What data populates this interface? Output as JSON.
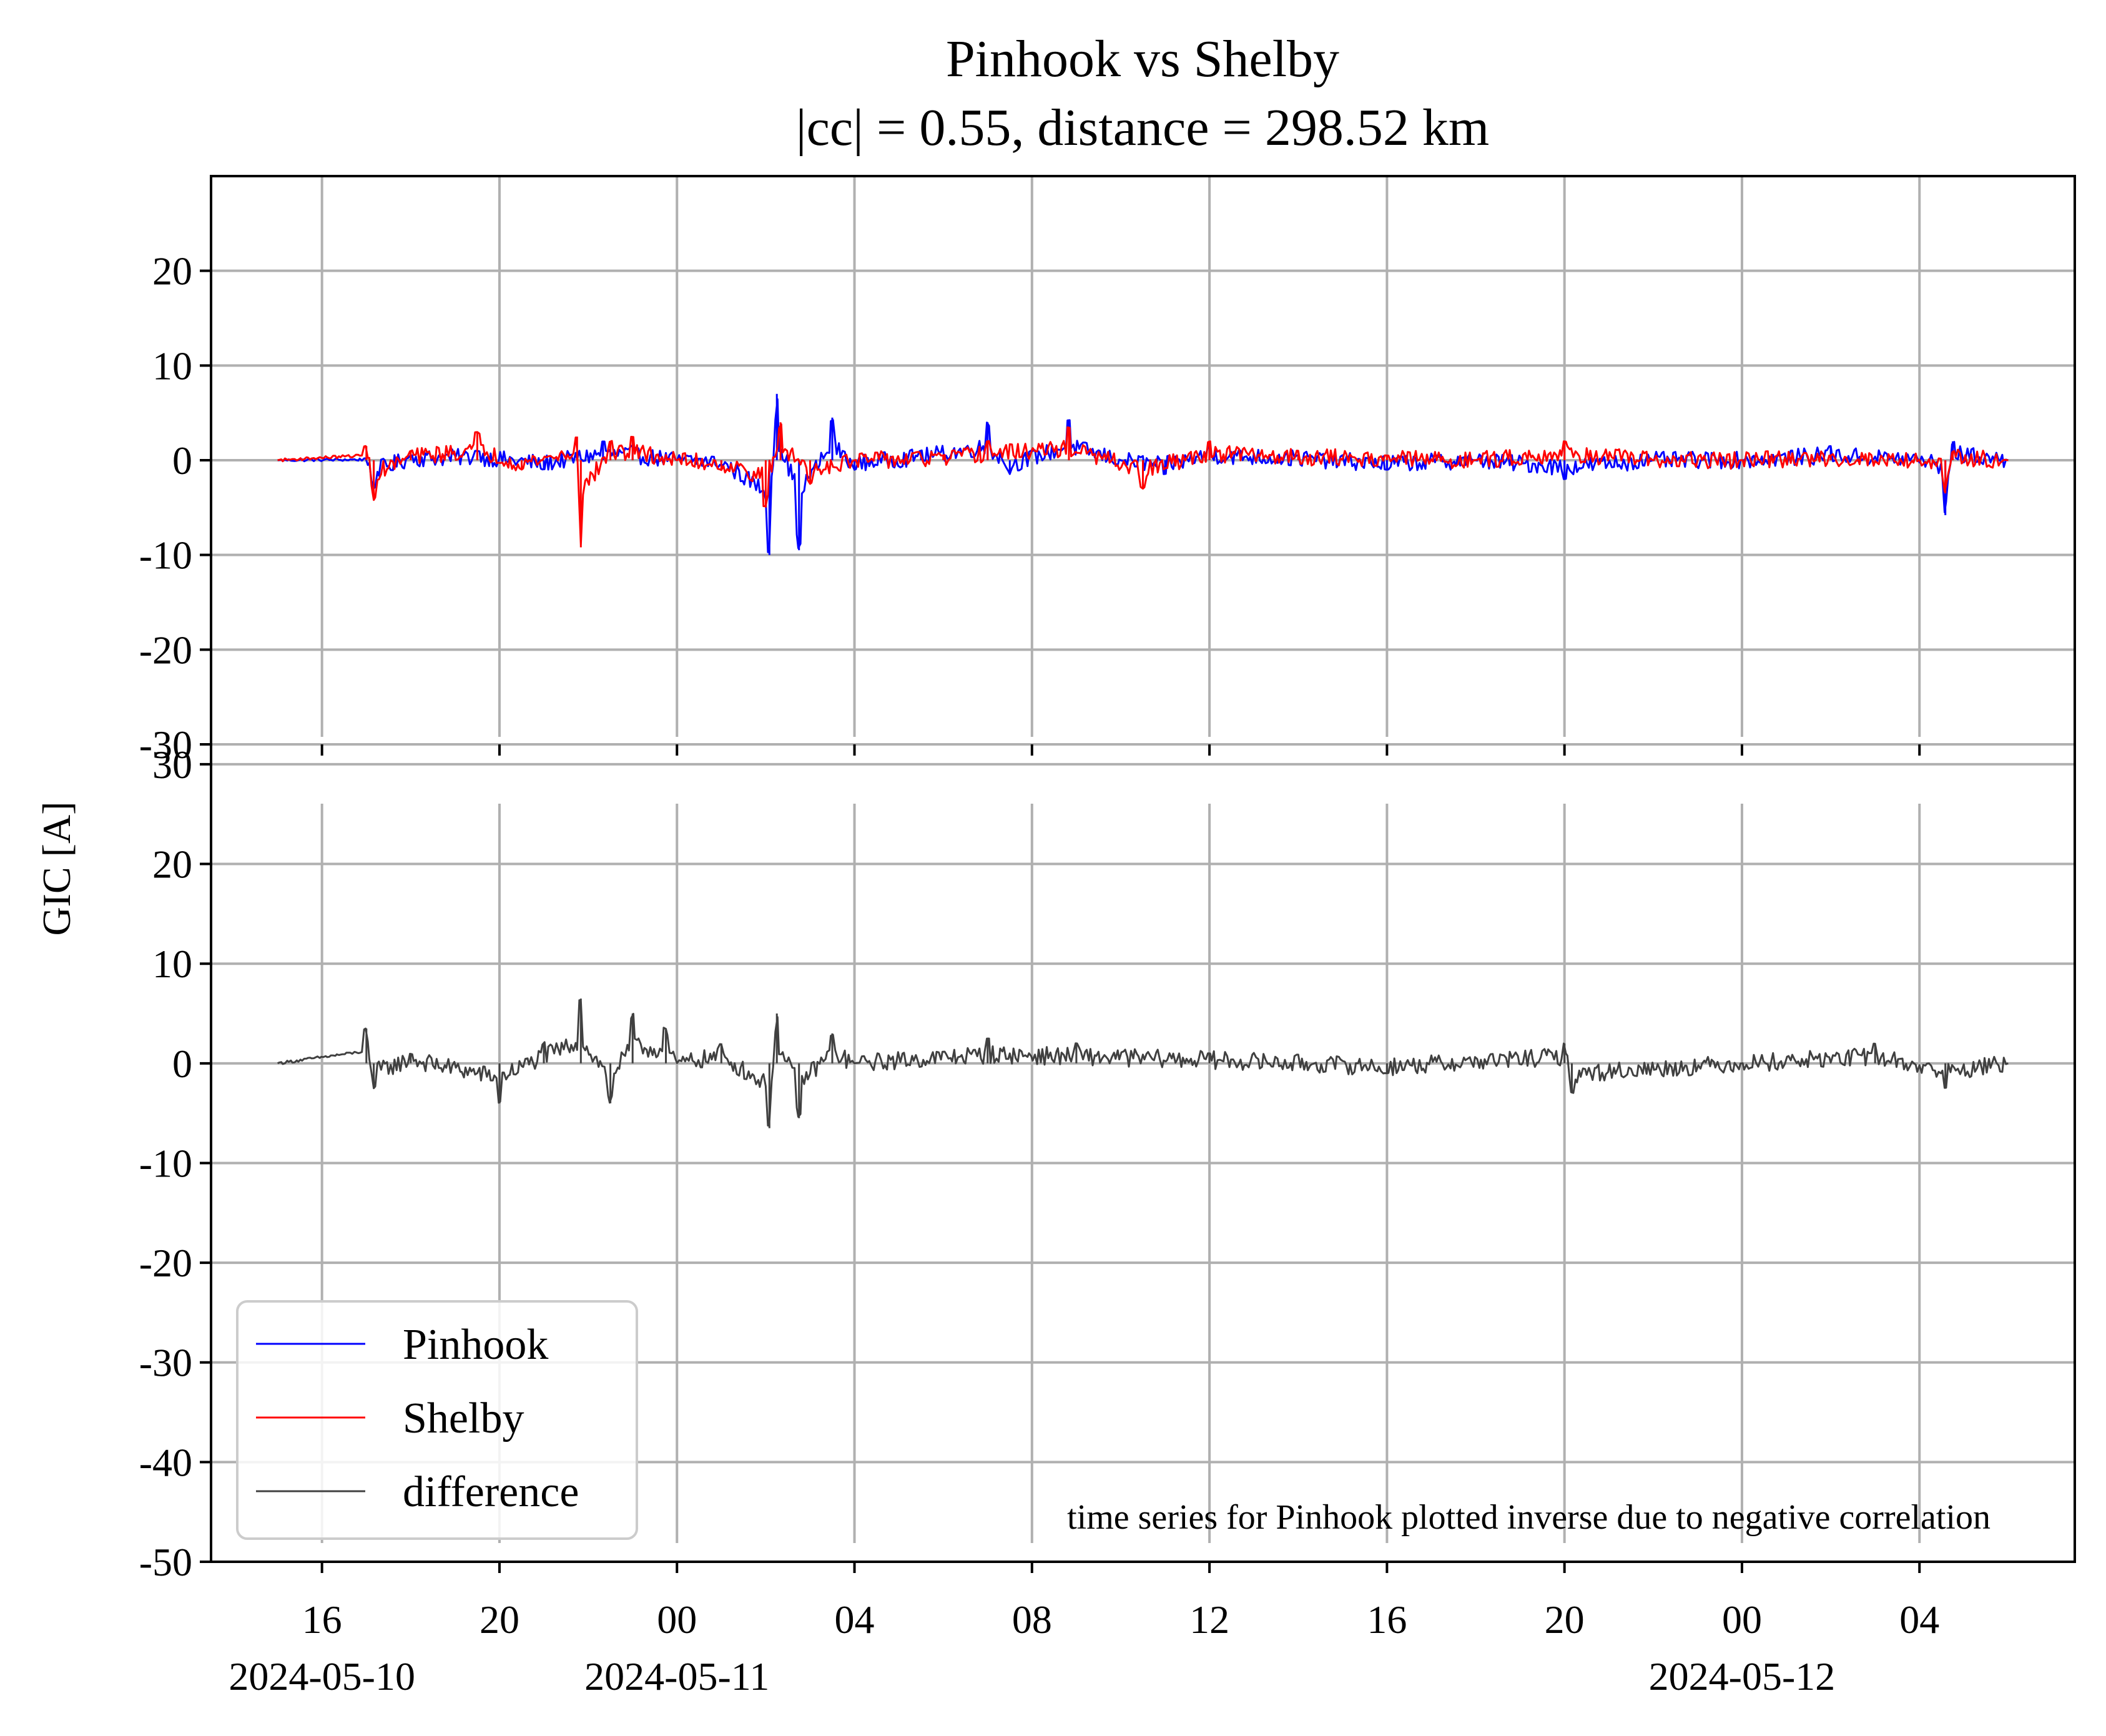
{
  "chart_data": {
    "type": "line",
    "title": "Pinhook vs Shelby",
    "subtitle": "|cc| = 0.55, distance = 298.52 km",
    "ylabel": "GIC [A]",
    "xlabel": "",
    "x_range": [
      "2024-05-10T13:30",
      "2024-05-12T07:30"
    ],
    "x_data_range": [
      "2024-05-10T15:00",
      "2024-05-12T06:00"
    ],
    "x_major_ticks": [
      {
        "time": "2024-05-10T16:00",
        "label": "16"
      },
      {
        "time": "2024-05-10T20:00",
        "label": "20"
      },
      {
        "time": "2024-05-11T00:00",
        "label": "00"
      },
      {
        "time": "2024-05-11T04:00",
        "label": "04"
      },
      {
        "time": "2024-05-11T08:00",
        "label": "08"
      },
      {
        "time": "2024-05-11T12:00",
        "label": "12"
      },
      {
        "time": "2024-05-11T16:00",
        "label": "16"
      },
      {
        "time": "2024-05-11T20:00",
        "label": "20"
      },
      {
        "time": "2024-05-12T00:00",
        "label": "00"
      },
      {
        "time": "2024-05-12T04:00",
        "label": "04"
      }
    ],
    "x_date_labels": [
      {
        "time": "2024-05-10T16:00",
        "label": "2024-05-10"
      },
      {
        "time": "2024-05-11T00:00",
        "label": "2024-05-11"
      },
      {
        "time": "2024-05-12T00:00",
        "label": "2024-05-12"
      }
    ],
    "grid": true,
    "legend_position": "lower-left",
    "panels": [
      {
        "name": "top",
        "ylim": [
          -30,
          30
        ],
        "yticks": [
          -30,
          -20,
          -10,
          0,
          10,
          20
        ],
        "series": [
          {
            "name": "Pinhook",
            "color": "#0000ff",
            "points": [
              [
                "2024-05-10T15:00",
                0.0
              ],
              [
                "2024-05-10T17:00",
                0.2
              ],
              [
                "2024-05-10T17:10",
                -3.0
              ],
              [
                "2024-05-10T18:00",
                0.5
              ],
              [
                "2024-05-10T19:30",
                1.0
              ],
              [
                "2024-05-10T21:00",
                -1.0
              ],
              [
                "2024-05-10T22:20",
                2.0
              ],
              [
                "2024-05-10T23:00",
                1.5
              ],
              [
                "2024-05-11T00:00",
                0.0
              ],
              [
                "2024-05-11T01:00",
                -0.5
              ],
              [
                "2024-05-11T02:05",
                -10.0
              ],
              [
                "2024-05-11T02:15",
                7.0
              ],
              [
                "2024-05-11T02:45",
                -9.5
              ],
              [
                "2024-05-11T03:30",
                4.5
              ],
              [
                "2024-05-11T04:00",
                -1.0
              ],
              [
                "2024-05-11T05:30",
                1.0
              ],
              [
                "2024-05-11T07:00",
                4.0
              ],
              [
                "2024-05-11T07:30",
                -1.5
              ],
              [
                "2024-05-11T08:50",
                4.3
              ],
              [
                "2024-05-11T10:00",
                0.0
              ],
              [
                "2024-05-11T11:00",
                -1.5
              ],
              [
                "2024-05-11T12:00",
                1.5
              ],
              [
                "2024-05-11T14:00",
                0.5
              ],
              [
                "2024-05-11T16:00",
                -1.0
              ],
              [
                "2024-05-11T18:00",
                0.0
              ],
              [
                "2024-05-11T20:00",
                -2.0
              ],
              [
                "2024-05-11T22:00",
                0.0
              ],
              [
                "2024-05-12T00:00",
                0.0
              ],
              [
                "2024-05-12T02:00",
                1.5
              ],
              [
                "2024-05-12T04:20",
                0.0
              ],
              [
                "2024-05-12T04:35",
                -5.8
              ],
              [
                "2024-05-12T04:45",
                2.0
              ],
              [
                "2024-05-12T06:00",
                0.0
              ]
            ]
          },
          {
            "name": "Shelby",
            "color": "#ff0000",
            "points": [
              [
                "2024-05-10T15:00",
                0.0
              ],
              [
                "2024-05-10T17:00",
                1.5
              ],
              [
                "2024-05-10T17:10",
                -4.2
              ],
              [
                "2024-05-10T18:00",
                1.0
              ],
              [
                "2024-05-10T19:30",
                3.0
              ],
              [
                "2024-05-10T20:30",
                -1.0
              ],
              [
                "2024-05-10T21:45",
                2.5
              ],
              [
                "2024-05-10T21:50",
                -9.2
              ],
              [
                "2024-05-10T22:30",
                2.0
              ],
              [
                "2024-05-10T23:00",
                2.5
              ],
              [
                "2024-05-11T00:00",
                0.0
              ],
              [
                "2024-05-11T01:00",
                -1.0
              ],
              [
                "2024-05-11T02:00",
                -5.0
              ],
              [
                "2024-05-11T02:20",
                4.0
              ],
              [
                "2024-05-11T03:00",
                -2.5
              ],
              [
                "2024-05-11T04:00",
                0.0
              ],
              [
                "2024-05-11T06:00",
                0.5
              ],
              [
                "2024-05-11T07:00",
                2.0
              ],
              [
                "2024-05-11T08:50",
                3.5
              ],
              [
                "2024-05-11T10:30",
                -3.0
              ],
              [
                "2024-05-11T12:00",
                2.0
              ],
              [
                "2024-05-11T14:00",
                1.0
              ],
              [
                "2024-05-11T16:00",
                0.5
              ],
              [
                "2024-05-11T18:00",
                0.0
              ],
              [
                "2024-05-11T20:00",
                2.0
              ],
              [
                "2024-05-11T22:00",
                0.0
              ],
              [
                "2024-05-12T00:00",
                0.0
              ],
              [
                "2024-05-12T02:00",
                0.5
              ],
              [
                "2024-05-12T04:20",
                0.0
              ],
              [
                "2024-05-12T04:35",
                -3.5
              ],
              [
                "2024-05-12T04:45",
                1.0
              ],
              [
                "2024-05-12T06:00",
                0.0
              ]
            ]
          }
        ]
      },
      {
        "name": "bottom",
        "ylim": [
          -50,
          32
        ],
        "yticks": [
          -50,
          -40,
          -30,
          -20,
          -10,
          0,
          10,
          20,
          30
        ],
        "series": [
          {
            "name": "difference",
            "color": "#404040",
            "points": [
              [
                "2024-05-10T15:00",
                0.0
              ],
              [
                "2024-05-10T17:00",
                3.5
              ],
              [
                "2024-05-10T17:10",
                -2.5
              ],
              [
                "2024-05-10T18:00",
                1.0
              ],
              [
                "2024-05-10T20:00",
                -4.0
              ],
              [
                "2024-05-10T21:00",
                2.0
              ],
              [
                "2024-05-10T21:50",
                6.5
              ],
              [
                "2024-05-10T22:30",
                -4.0
              ],
              [
                "2024-05-10T23:00",
                5.0
              ],
              [
                "2024-05-10T23:45",
                3.5
              ],
              [
                "2024-05-11T00:00",
                0.0
              ],
              [
                "2024-05-11T01:00",
                2.0
              ],
              [
                "2024-05-11T02:05",
                -6.5
              ],
              [
                "2024-05-11T02:15",
                5.0
              ],
              [
                "2024-05-11T02:45",
                -5.5
              ],
              [
                "2024-05-11T03:30",
                3.0
              ],
              [
                "2024-05-11T04:00",
                0.0
              ],
              [
                "2024-05-11T07:00",
                2.5
              ],
              [
                "2024-05-11T09:00",
                2.0
              ],
              [
                "2024-05-11T12:00",
                1.0
              ],
              [
                "2024-05-11T16:00",
                -1.0
              ],
              [
                "2024-05-11T20:00",
                2.0
              ],
              [
                "2024-05-11T20:10",
                -3.0
              ],
              [
                "2024-05-12T00:00",
                0.0
              ],
              [
                "2024-05-12T03:00",
                2.0
              ],
              [
                "2024-05-12T04:35",
                -2.5
              ],
              [
                "2024-05-12T06:00",
                0.0
              ]
            ]
          }
        ]
      }
    ],
    "annotation": "time series for Pinhook plotted inverse due to negative correlation"
  },
  "legend": {
    "items": [
      {
        "name": "Pinhook",
        "color": "#0000ff"
      },
      {
        "name": "Shelby",
        "color": "#ff0000"
      },
      {
        "name": "difference",
        "color": "#404040"
      }
    ]
  }
}
